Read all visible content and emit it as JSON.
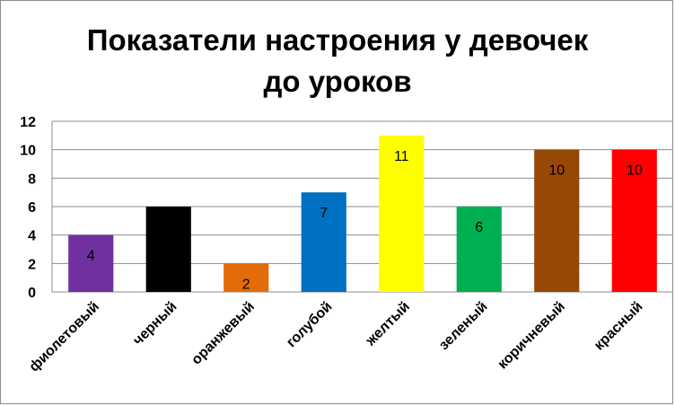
{
  "chart_data": {
    "type": "bar",
    "title_lines": [
      "Показатели настроения у девочек",
      "до уроков"
    ],
    "categories": [
      "фиолетовый",
      "черный",
      "оранжевый",
      "голубой",
      "желтый",
      "зеленый",
      "коричневый",
      "красный"
    ],
    "values": [
      4,
      6,
      2,
      7,
      11,
      6,
      10,
      10
    ],
    "colors": [
      "#7030a0",
      "#000000",
      "#e36c09",
      "#0070c0",
      "#ffff00",
      "#00b050",
      "#984806",
      "#ff0000"
    ],
    "data_labels": [
      "4",
      "",
      "2",
      "7",
      "11",
      "6",
      "10",
      "10"
    ],
    "ylim": [
      0,
      12
    ],
    "yticks": [
      0,
      2,
      4,
      6,
      8,
      10,
      12
    ],
    "grid": true,
    "legend": "none"
  }
}
